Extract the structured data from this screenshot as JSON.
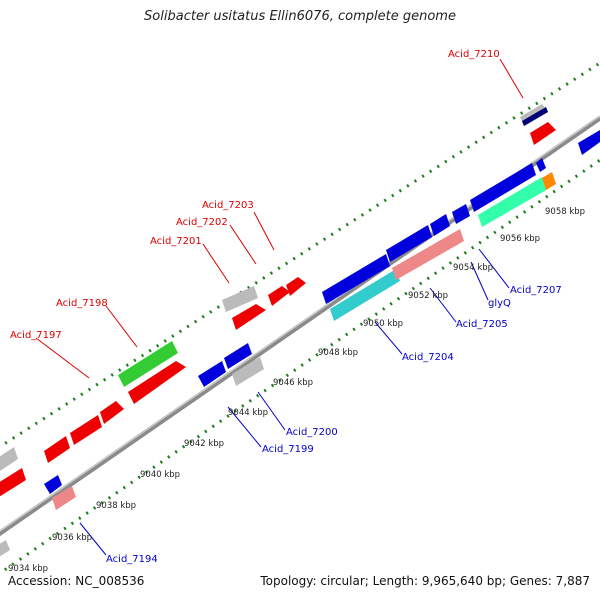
{
  "title": "Solibacter usitatus Ellin6076, complete genome",
  "footer": {
    "accession": "Accession: NC_008536",
    "summary": "Topology: circular; Length: 9,965,640 bp; Genes: 7,887"
  },
  "colors": {
    "backbone": "#8a8a8a",
    "gc_dots": "#1e7d1e",
    "label_forward": "#dd0000",
    "label_reverse": "#0000cc",
    "tick_label": "#222222"
  },
  "ticks": [
    {
      "label": "9034 kbp"
    },
    {
      "label": "9036 kbp"
    },
    {
      "label": "9038 kbp"
    },
    {
      "label": "9040 kbp"
    },
    {
      "label": "9042 kbp"
    },
    {
      "label": "9044 kbp"
    },
    {
      "label": "9046 kbp"
    },
    {
      "label": "9048 kbp"
    },
    {
      "label": "9050 kbp"
    },
    {
      "label": "9052 kbp"
    },
    {
      "label": "9054 kbp"
    },
    {
      "label": "9056 kbp"
    },
    {
      "label": "9058 kbp"
    }
  ],
  "forward_labels": [
    "Acid_7197",
    "Acid_7198",
    "Acid_7201",
    "Acid_7202",
    "Acid_7203",
    "Acid_7210"
  ],
  "reverse_labels": [
    "Acid_7194",
    "Acid_7199",
    "Acid_7200",
    "Acid_7204",
    "Acid_7205",
    "glyQ",
    "Acid_7207"
  ]
}
